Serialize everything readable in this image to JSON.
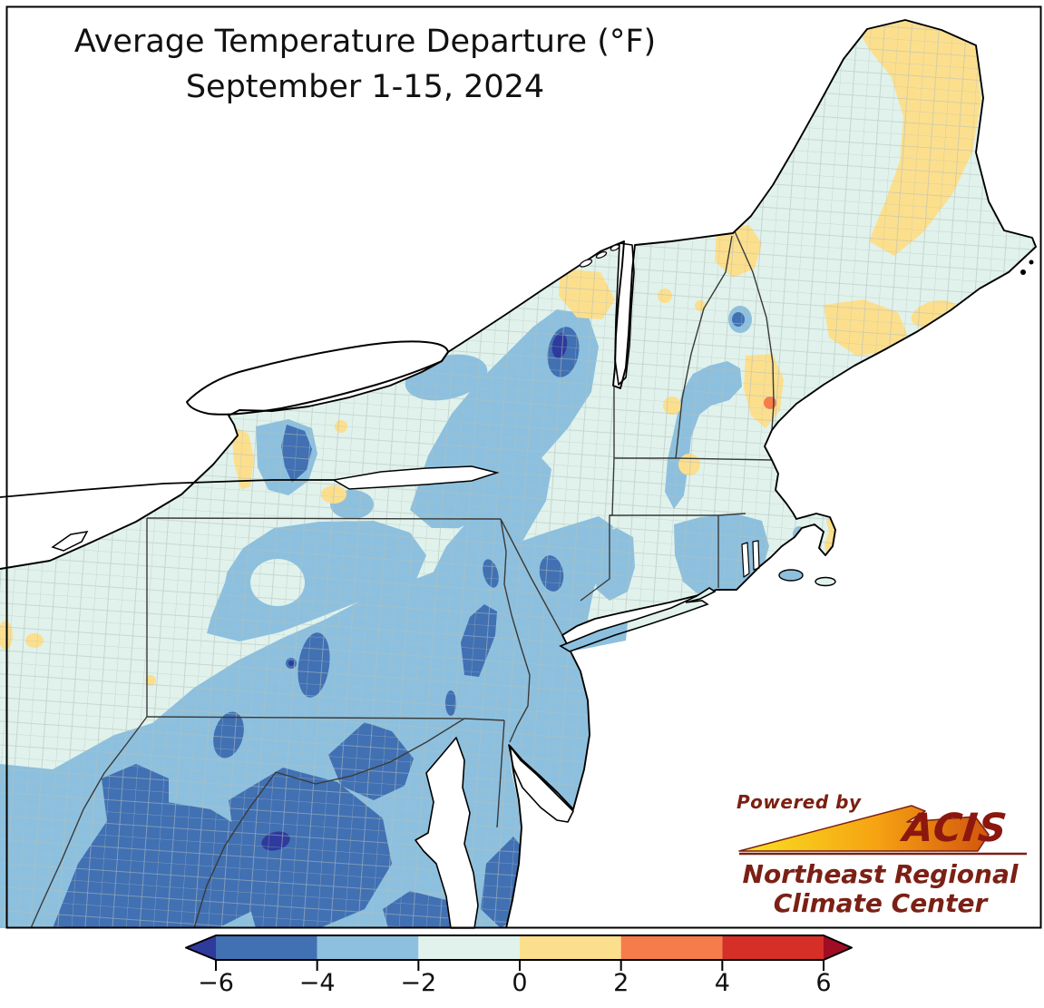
{
  "title": {
    "line1": "Average Temperature Departure (°F)",
    "line2": "September 1-15, 2024"
  },
  "colorbar": {
    "unit": "°F",
    "tick_labels": [
      "−6",
      "−4",
      "−2",
      "0",
      "2",
      "4",
      "6"
    ],
    "tick_values": [
      -6,
      -4,
      -2,
      0,
      2,
      4,
      6
    ],
    "segment_colors": [
      "#4170b3",
      "#8dc0de",
      "#e0f2eb",
      "#fcdf8d",
      "#f67c4a",
      "#d62f27"
    ],
    "left_arrow_color": "#2e3a9c",
    "right_arrow_color": "#a00c24"
  },
  "logo": {
    "powered_by": "Powered by",
    "brand": "ACIS",
    "org_line1": "Northeast Regional",
    "org_line2": "Climate Center",
    "maroon": "#7b2015",
    "swoosh_gradient": [
      "#f8e320",
      "#f6a312",
      "#d2550e"
    ]
  },
  "chart_data": {
    "type": "choropleth-map",
    "title": "Average Temperature Departure (°F)",
    "period": "September 1-15, 2024",
    "region": "Northeastern United States (OH, WV, VA, MD, DE, PA, NJ, NY, CT, RI, MA, VT, NH, ME)",
    "variable": "Average temperature departure from normal",
    "units": "°F",
    "scale_levels": [
      -6,
      -4,
      -2,
      0,
      2,
      4,
      6
    ],
    "level_colors": {
      "below_-6": "#2e3a9c",
      "-6_to_-4": "#4170b3",
      "-4_to_-2": "#8dc0de",
      "-2_to_0": "#e0f2eb",
      "0_to_2": "#fcdf8d",
      "2_to_4": "#f67c4a",
      "4_to_6": "#d62f27",
      "above_6": "#a00c24"
    },
    "map_colors": {
      "water_and_outside": "#ffffff",
      "coastline": "#000000",
      "state_border": "#3a3a3a",
      "county_border": "#b3bfbc"
    },
    "summary": "Below-normal temperatures (−2 to −6 °F) over PA, WV, VA, MD, NJ and southern NY with small pockets below −6 °F; near normal (−2 to 0 °F) over OH, northern NY and most of New England; above normal (0 to 2 °F) in northern Maine and scattered spots, isolated 2–4 °F spot in southeastern NH"
  }
}
